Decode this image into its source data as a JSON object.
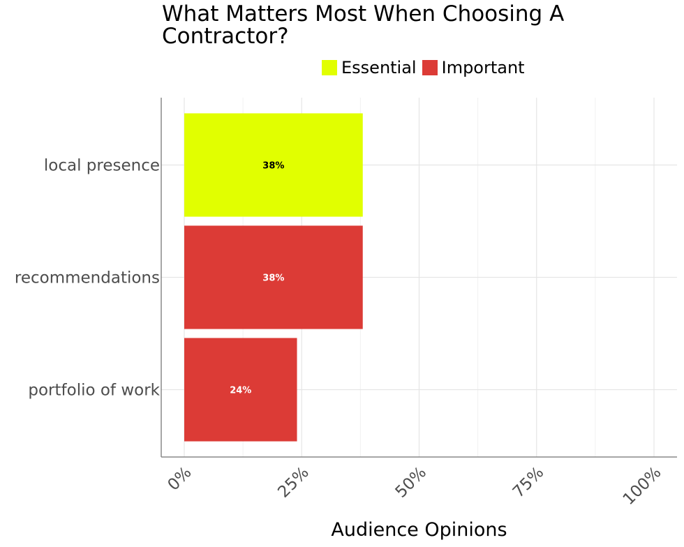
{
  "chart_data": {
    "type": "bar",
    "orientation": "horizontal",
    "title": "What Matters Most When Choosing A Contractor?",
    "xlabel": "Audience Opinions",
    "ylabel": "",
    "categories": [
      "local presence",
      "recommendations",
      "portfolio of work"
    ],
    "values": [
      38,
      38,
      24
    ],
    "labels": [
      "38%",
      "38%",
      "24%"
    ],
    "groups": [
      "Essential",
      "Important",
      "Important"
    ],
    "legend": [
      {
        "name": "Essential",
        "color": "#e1ff00"
      },
      {
        "name": "Important",
        "color": "#dc3b36"
      }
    ],
    "label_colors": {
      "Essential": "#000000",
      "Important": "#ffffff"
    },
    "xlim": [
      0,
      100
    ],
    "x_ticks": [
      0,
      25,
      50,
      75,
      100
    ],
    "x_tick_labels": [
      "0%",
      "25%",
      "50%",
      "75%",
      "100%"
    ],
    "grid": true,
    "legend_position": "top"
  }
}
